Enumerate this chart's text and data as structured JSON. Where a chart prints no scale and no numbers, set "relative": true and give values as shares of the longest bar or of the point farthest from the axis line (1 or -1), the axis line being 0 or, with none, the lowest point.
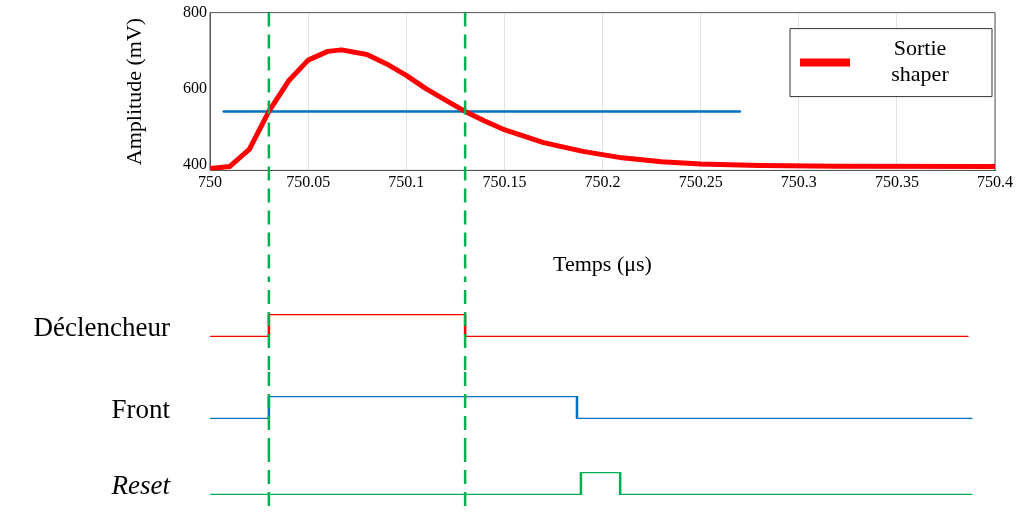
{
  "chart_data": [
    {
      "type": "line",
      "xlabel": "Temps (μs)",
      "ylabel": "Amplitude (mV)",
      "xlim": [
        750,
        750.4
      ],
      "xticks": [
        750,
        750.05,
        750.1,
        750.15,
        750.2,
        750.25,
        750.3,
        750.35,
        750.4
      ],
      "ylim": [
        385,
        800
      ],
      "yticks": [
        400,
        600,
        800
      ],
      "grid": "x",
      "legend": "top right",
      "marker": "none",
      "ref_lines": [
        {
          "axis": "x",
          "value": 750.03,
          "color": "#00b050",
          "line_style": "dashed"
        },
        {
          "axis": "x",
          "value": 750.13,
          "color": "#00b050",
          "line_style": "dashed"
        }
      ],
      "series": [
        {
          "name": "Sortie shaper",
          "color": "#ff0000",
          "x": [
            750,
            750.01,
            750.02,
            750.03,
            750.04,
            750.05,
            750.06,
            750.067,
            750.08,
            750.09,
            750.1,
            750.11,
            750.12,
            750.13,
            750.14,
            750.15,
            750.17,
            750.19,
            750.21,
            750.23,
            750.25,
            750.28,
            750.32,
            750.4
          ],
          "values": [
            390,
            395,
            440,
            540,
            620,
            675,
            698,
            702,
            690,
            665,
            635,
            600,
            570,
            540,
            515,
            492,
            458,
            435,
            418,
            408,
            402,
            398,
            396,
            395
          ]
        },
        {
          "color": "#0070c0",
          "x": [
            750.007,
            750.27
          ],
          "values": [
            540,
            540
          ]
        }
      ]
    },
    {
      "type": "step",
      "ylabel": "Déclencheur",
      "relative": true,
      "marker": "none",
      "xlim": [
        750,
        750.4
      ],
      "tick_labels": false,
      "ref_lines": [
        {
          "axis": "x",
          "value": 750.03,
          "color": "#00b050",
          "line_style": "dashed"
        },
        {
          "axis": "x",
          "value": 750.13,
          "color": "#00b050",
          "line_style": "dashed"
        }
      ],
      "series": [
        {
          "color": "#ff0000",
          "x": [
            750,
            750.03,
            750.13,
            750.386
          ],
          "values": [
            0,
            1,
            0,
            0
          ]
        }
      ]
    },
    {
      "type": "step",
      "ylabel": "Front",
      "relative": true,
      "marker": "none",
      "xlim": [
        750,
        750.4
      ],
      "tick_labels": false,
      "ref_lines": [
        {
          "axis": "x",
          "value": 750.03,
          "color": "#00b050",
          "line_style": "dashed"
        },
        {
          "axis": "x",
          "value": 750.13,
          "color": "#00b050",
          "line_style": "dashed"
        }
      ],
      "series": [
        {
          "color": "#0070c0",
          "x": [
            750,
            750.03,
            750.187,
            750.388
          ],
          "values": [
            0,
            1,
            0,
            0
          ]
        }
      ]
    },
    {
      "type": "step",
      "ylabel": "Reset",
      "relative": true,
      "marker": "none",
      "xlim": [
        750,
        750.4
      ],
      "tick_labels": false,
      "ref_lines": [
        {
          "axis": "x",
          "value": 750.03,
          "color": "#00b050",
          "line_style": "dashed"
        },
        {
          "axis": "x",
          "value": 750.13,
          "color": "#00b050",
          "line_style": "dashed"
        }
      ],
      "series": [
        {
          "color": "#00b050",
          "x": [
            750,
            750.189,
            750.209,
            750.388
          ],
          "values": [
            0,
            1,
            0,
            0
          ]
        }
      ]
    }
  ]
}
